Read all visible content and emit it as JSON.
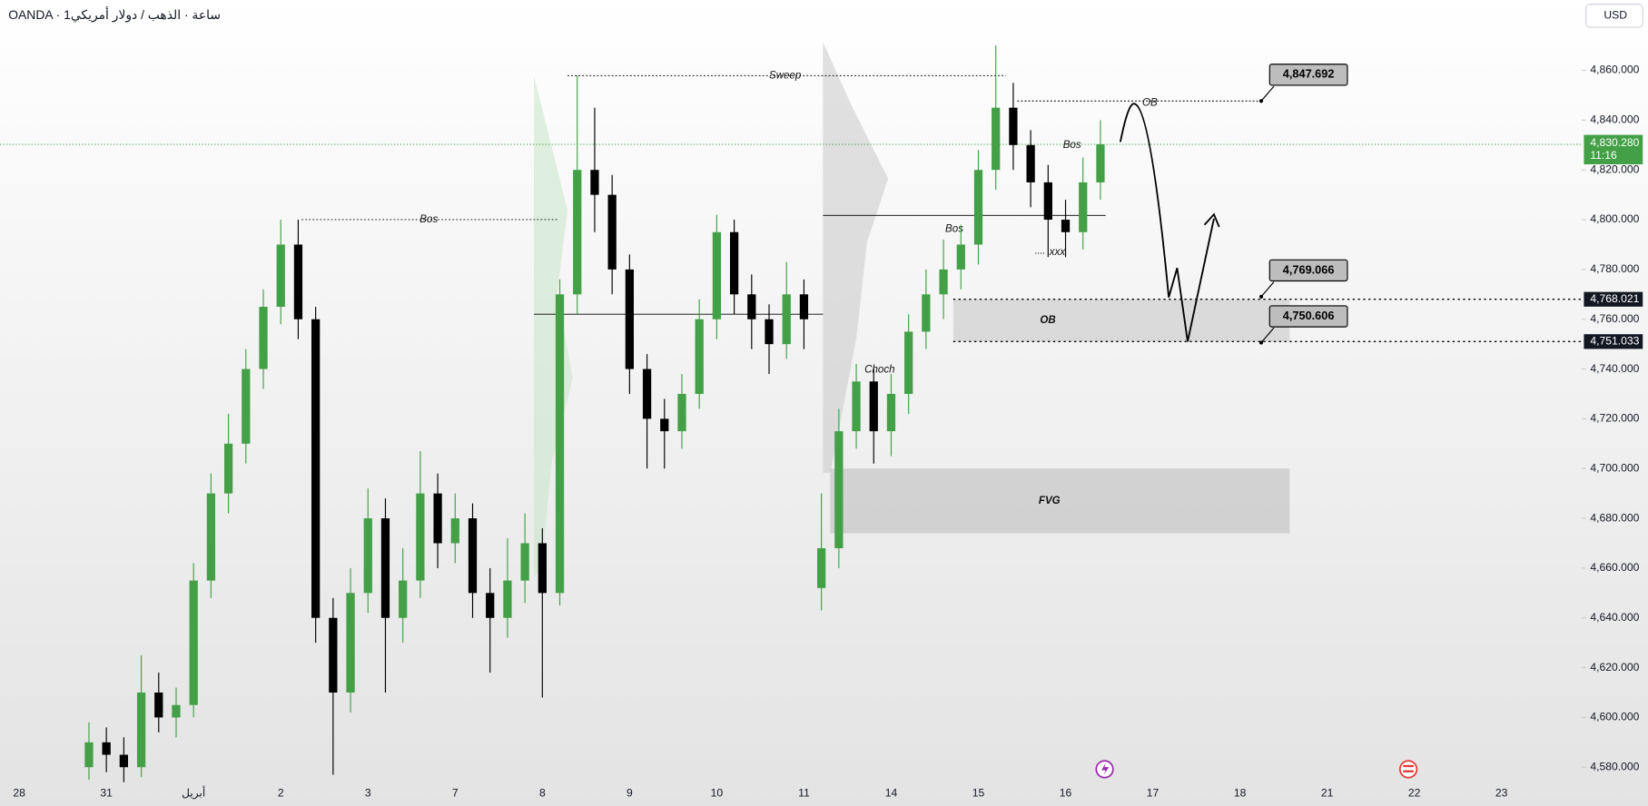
{
  "header": {
    "symbol": "OANDA · 1ساعة · الذهب / دولار أمريكي",
    "currency": "USD"
  },
  "chart_data": {
    "type": "candlestick",
    "categories": [
      "28",
      "31",
      "أبريل",
      "2",
      "3",
      "7",
      "8",
      "9",
      "10",
      "11",
      "14",
      "15",
      "16",
      "17",
      "18",
      "21",
      "22",
      "23"
    ],
    "xlim": [
      -0.22,
      17.86
    ],
    "ylim": [
      4573.7,
      4873.5
    ],
    "yticks": [
      {
        "value": 4580,
        "label": "4,580.000"
      },
      {
        "value": 4600,
        "label": "4,600.000"
      },
      {
        "value": 4620,
        "label": "4,620.000"
      },
      {
        "value": 4640,
        "label": "4,640.000"
      },
      {
        "value": 4660,
        "label": "4,660.000"
      },
      {
        "value": 4680,
        "label": "4,680.000"
      },
      {
        "value": 4700,
        "label": "4,700.000"
      },
      {
        "value": 4720,
        "label": "4,720.000"
      },
      {
        "value": 4740,
        "label": "4,740.000"
      },
      {
        "value": 4760,
        "label": "4,760.000"
      },
      {
        "value": 4780,
        "label": "4,780.000"
      },
      {
        "value": 4800,
        "label": "4,800.000"
      },
      {
        "value": 4820,
        "label": "4,820.000"
      },
      {
        "value": 4840,
        "label": "4,840.000"
      },
      {
        "value": 4860,
        "label": "4,860.000"
      }
    ],
    "up_color": "#43a047",
    "down_color": "#000000",
    "x": [
      0.8,
      1.0,
      1.2,
      1.4,
      1.6,
      1.8,
      2.0,
      2.2,
      2.4,
      2.6,
      2.8,
      3.0,
      3.2,
      3.4,
      3.6,
      3.8,
      4.0,
      4.2,
      4.4,
      4.6,
      4.8,
      5.0,
      5.2,
      5.4,
      5.6,
      5.8,
      6.0,
      6.2,
      6.4,
      6.6,
      6.8,
      7.0,
      7.2,
      7.4,
      7.6,
      7.8,
      8.0,
      8.2,
      8.4,
      8.6,
      8.8,
      9.0,
      9.2,
      9.4,
      9.6,
      9.8,
      10.0,
      10.2,
      10.4,
      10.6,
      10.8,
      11.0,
      11.2,
      11.4,
      11.6,
      11.8,
      12.0,
      12.2,
      12.4
    ],
    "open": [
      4580,
      4590,
      4585,
      4580,
      4610,
      4600,
      4605,
      4655,
      4690,
      4710,
      4740,
      4765,
      4790,
      4760,
      4640,
      4610,
      4650,
      4680,
      4640,
      4655,
      4690,
      4670,
      4680,
      4650,
      4640,
      4655,
      4670,
      4650,
      4770,
      4820,
      4810,
      4780,
      4740,
      4720,
      4715,
      4730,
      4760,
      4795,
      4770,
      4760,
      4750,
      4770,
      4652,
      4668,
      4715,
      4735,
      4715,
      4730,
      4755,
      4770,
      4780,
      4790,
      4820,
      4845,
      4830,
      4815,
      4800,
      4795,
      4815
    ],
    "high": [
      4598,
      4596,
      4592,
      4625,
      4618,
      4612,
      4662,
      4698,
      4722,
      4748,
      4772,
      4800,
      4800,
      4765,
      4648,
      4660,
      4692,
      4688,
      4668,
      4707,
      4698,
      4690,
      4686,
      4660,
      4672,
      4682,
      4676,
      4776,
      4858,
      4845,
      4818,
      4786,
      4746,
      4728,
      4738,
      4768,
      4802,
      4800,
      4778,
      4766,
      4783,
      4776,
      4690,
      4724,
      4742,
      4740,
      4738,
      4762,
      4780,
      4792,
      4798,
      4828,
      4870,
      4855,
      4836,
      4822,
      4808,
      4825,
      4840
    ],
    "low": [
      4575,
      4578,
      4574,
      4576,
      4594,
      4592,
      4600,
      4648,
      4682,
      4702,
      4732,
      4758,
      4752,
      4630,
      4577,
      4602,
      4642,
      4610,
      4630,
      4648,
      4660,
      4662,
      4640,
      4618,
      4632,
      4646,
      4608,
      4645,
      4762,
      4795,
      4770,
      4730,
      4700,
      4700,
      4708,
      4724,
      4752,
      4762,
      4748,
      4738,
      4744,
      4748,
      4643,
      4660,
      4708,
      4702,
      4705,
      4722,
      4748,
      4760,
      4772,
      4782,
      4812,
      4820,
      4805,
      4785,
      4785,
      4788,
      4808
    ],
    "close": [
      4590,
      4585,
      4580,
      4610,
      4600,
      4605,
      4655,
      4690,
      4710,
      4740,
      4765,
      4790,
      4760,
      4640,
      4610,
      4650,
      4680,
      4640,
      4655,
      4690,
      4670,
      4680,
      4650,
      4640,
      4655,
      4670,
      4650,
      4770,
      4820,
      4810,
      4780,
      4740,
      4720,
      4715,
      4730,
      4760,
      4795,
      4770,
      4760,
      4750,
      4770,
      4760,
      4668,
      4715,
      4735,
      4715,
      4730,
      4755,
      4770,
      4780,
      4790,
      4820,
      4845,
      4830,
      4815,
      4800,
      4795,
      4815,
      4830.28
    ],
    "current_price": {
      "value": 4830.28,
      "label": "4,830.280",
      "countdown": "11:16",
      "color": "#43a047"
    },
    "price_tags": [
      {
        "value": 4768.021,
        "label": "4,768.021"
      },
      {
        "value": 4751.033,
        "label": "4,751.033"
      }
    ],
    "callouts": [
      {
        "value": 4847.692,
        "label": "4,847.692"
      },
      {
        "value": 4769.066,
        "label": "4,769.066"
      },
      {
        "value": 4750.606,
        "label": "4,750.606"
      }
    ],
    "zones": [
      {
        "label": "FVG",
        "ylim": [
          4674,
          4700
        ]
      },
      {
        "label": "OB",
        "ylim": [
          4751.033,
          4768.021
        ]
      }
    ],
    "annotations": [
      "Sweep",
      "Bos",
      "OB",
      "Bos",
      "Bos",
      "xxx",
      "Choch"
    ]
  }
}
